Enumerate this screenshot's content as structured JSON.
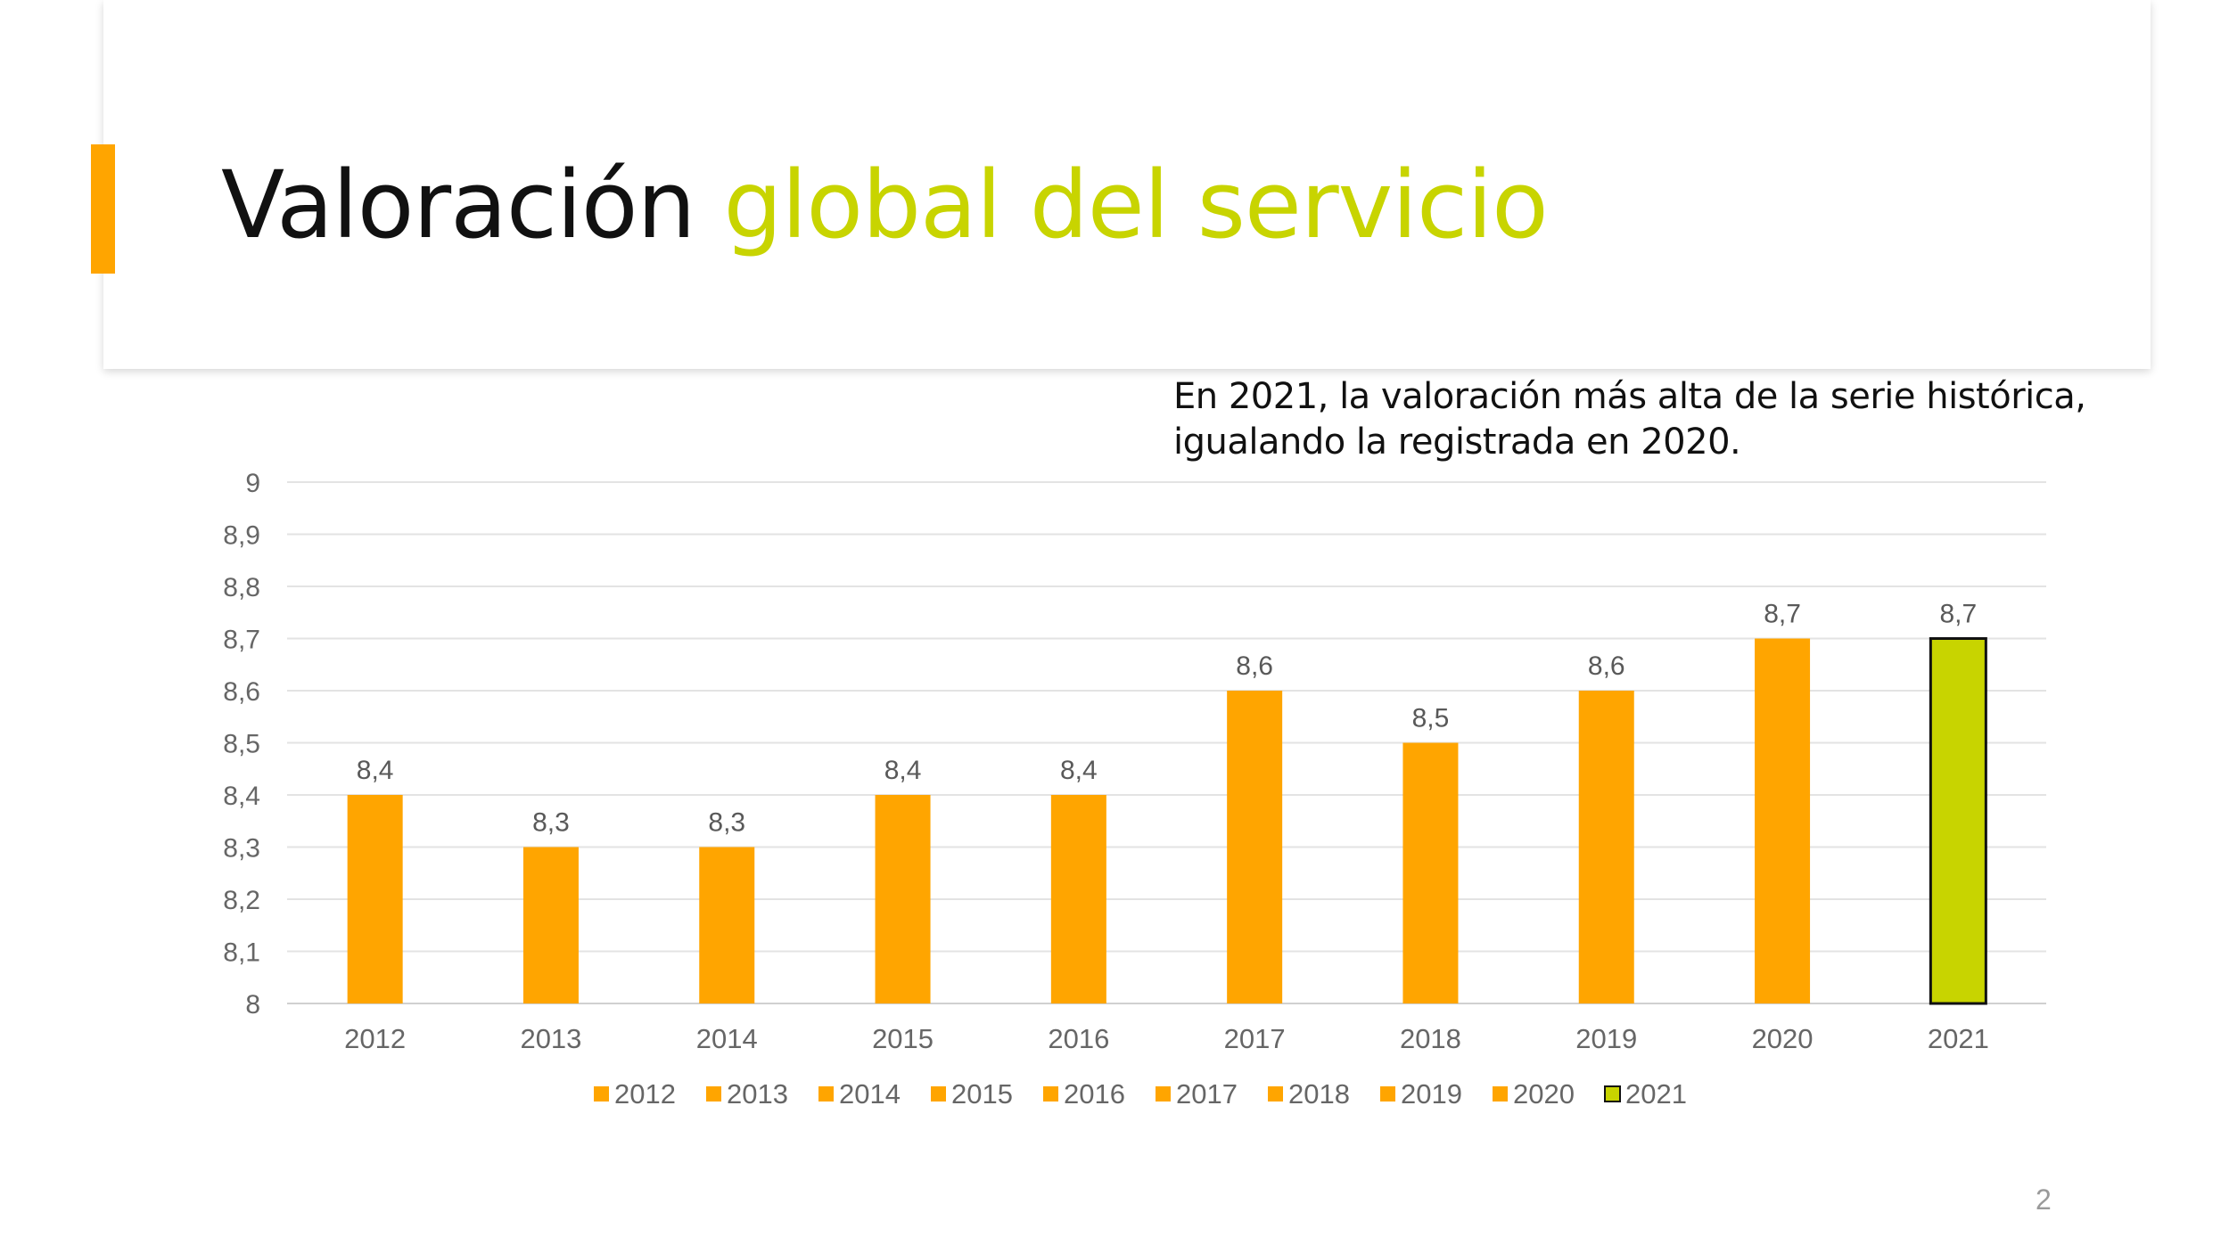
{
  "slide": {
    "title_part1": "Valoración",
    "title_part2": "global del servicio",
    "subtitle_lines": [
      "En 2021, la valoración más alta de la serie histórica,",
      "igualando la registrada en 2020."
    ],
    "page_number": "2"
  },
  "colors": {
    "accent_orange": "#FFA500",
    "accent_green": "#C8D400",
    "bar_orange": "#FFA500",
    "bar_green": "#C8D400"
  },
  "chart_data": {
    "type": "bar",
    "categories": [
      "2012",
      "2013",
      "2014",
      "2015",
      "2016",
      "2017",
      "2018",
      "2019",
      "2020",
      "2021"
    ],
    "values": [
      8.4,
      8.3,
      8.3,
      8.4,
      8.4,
      8.6,
      8.5,
      8.6,
      8.7,
      8.7
    ],
    "data_labels": [
      "8,4",
      "8,3",
      "8,3",
      "8,4",
      "8,4",
      "8,6",
      "8,5",
      "8,6",
      "8,7",
      "8,7"
    ],
    "bar_colors": [
      "#FFA500",
      "#FFA500",
      "#FFA500",
      "#FFA500",
      "#FFA500",
      "#FFA500",
      "#FFA500",
      "#FFA500",
      "#FFA500",
      "#C8D400"
    ],
    "highlighted": [
      false,
      false,
      false,
      false,
      false,
      false,
      false,
      false,
      false,
      true
    ],
    "ylim": [
      8,
      9
    ],
    "yticks": [
      8,
      8.1,
      8.2,
      8.3,
      8.4,
      8.5,
      8.6,
      8.7,
      8.8,
      8.9,
      9
    ],
    "ytick_labels": [
      "8",
      "8,1",
      "8,2",
      "8,3",
      "8,4",
      "8,5",
      "8,6",
      "8,7",
      "8,8",
      "8,9",
      "9"
    ],
    "legend": [
      "2012",
      "2013",
      "2014",
      "2015",
      "2016",
      "2017",
      "2018",
      "2019",
      "2020",
      "2021"
    ],
    "legend_position": "bottom",
    "grid": true,
    "title": "",
    "xlabel": "",
    "ylabel": ""
  }
}
